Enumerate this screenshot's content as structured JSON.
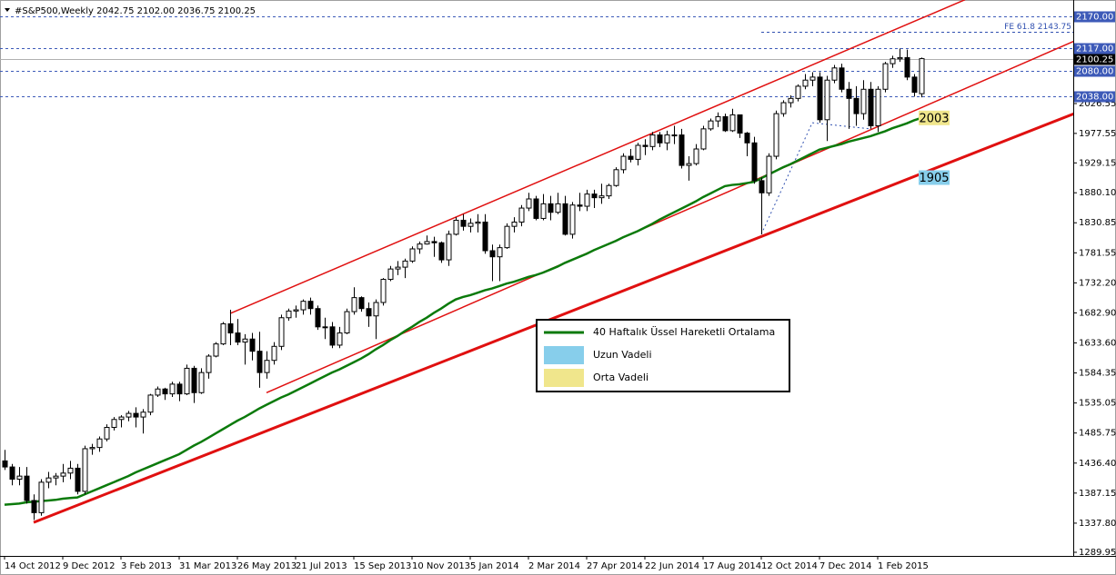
{
  "chart_data": {
    "type": "candlestick",
    "title": "#S&P500,Weekly  2042.75 2102.00 2036.75 2100.25",
    "categories": [
      "14 Oct 2012",
      null,
      null,
      null,
      null,
      null,
      null,
      null,
      "9 Dec 2012",
      null,
      null,
      null,
      null,
      null,
      null,
      null,
      "3 Feb 2013",
      null,
      null,
      null,
      null,
      null,
      null,
      null,
      "31 Mar 2013",
      null,
      null,
      null,
      null,
      null,
      null,
      null,
      "26 May 2013",
      null,
      null,
      null,
      null,
      null,
      null,
      null,
      "21 Jul 2013",
      null,
      null,
      null,
      null,
      null,
      null,
      null,
      "15 Sep 2013",
      null,
      null,
      null,
      null,
      null,
      null,
      null,
      "10 Nov 2013",
      null,
      null,
      null,
      null,
      null,
      null,
      null,
      "5 Jan 2014",
      null,
      null,
      null,
      null,
      null,
      null,
      null,
      "2 Mar 2014",
      null,
      null,
      null,
      null,
      null,
      null,
      null,
      "27 Apr 2014",
      null,
      null,
      null,
      null,
      null,
      null,
      null,
      "22 Jun 2014",
      null,
      null,
      null,
      null,
      null,
      null,
      null,
      "17 Aug 2014",
      null,
      null,
      null,
      null,
      null,
      null,
      null,
      "12 Oct 2014",
      null,
      null,
      null,
      null,
      null,
      null,
      null,
      "7 Dec 2014",
      null,
      null,
      null,
      null,
      null,
      null,
      null,
      "1 Feb 2015",
      null,
      null,
      null,
      null,
      null,
      null
    ],
    "ohlc": {
      "open": [
        1440,
        1430,
        1410,
        1415,
        1375,
        1355,
        1405,
        1412,
        1415,
        1420,
        1428,
        1390,
        1460,
        1462,
        1476,
        1495,
        1508,
        1512,
        1518,
        1512,
        1520,
        1548,
        1558,
        1550,
        1566,
        1550,
        1592,
        1552,
        1585,
        1612,
        1632,
        1665,
        1650,
        1635,
        1640,
        1620,
        1585,
        1605,
        1628,
        1675,
        1686,
        1688,
        1702,
        1690,
        1660,
        1660,
        1630,
        1650,
        1685,
        1708,
        1690,
        1678,
        1700,
        1738,
        1755,
        1758,
        1768,
        1788,
        1796,
        1800,
        1798,
        1770,
        1812,
        1835,
        1825,
        1830,
        1832,
        1785,
        1775,
        1790,
        1825,
        1832,
        1855,
        1870,
        1838,
        1862,
        1848,
        1862,
        1812,
        1860,
        1858,
        1878,
        1872,
        1875,
        1892,
        1918,
        1940,
        1935,
        1958,
        1956,
        1975,
        1962,
        1975,
        1975,
        1925,
        1928,
        1952,
        1985,
        1998,
        2005,
        1982,
        2008,
        1978,
        1962,
        1900,
        1880,
        1940,
        2010,
        2028,
        2035,
        2055,
        2065,
        2070,
        2000,
        2065,
        2085,
        2050,
        2035,
        2010,
        2050,
        1990,
        2050,
        2092,
        2100,
        2102,
        2070,
        2042.75
      ],
      "high": [
        1458,
        1435,
        1430,
        1430,
        1385,
        1410,
        1422,
        1420,
        1435,
        1440,
        1435,
        1465,
        1468,
        1480,
        1500,
        1512,
        1515,
        1522,
        1528,
        1525,
        1550,
        1562,
        1560,
        1570,
        1570,
        1598,
        1596,
        1592,
        1615,
        1635,
        1668,
        1688,
        1673,
        1648,
        1650,
        1652,
        1620,
        1635,
        1680,
        1690,
        1695,
        1705,
        1708,
        1695,
        1675,
        1668,
        1660,
        1690,
        1725,
        1710,
        1700,
        1705,
        1740,
        1760,
        1768,
        1772,
        1792,
        1800,
        1810,
        1808,
        1800,
        1818,
        1840,
        1845,
        1838,
        1845,
        1845,
        1795,
        1795,
        1830,
        1840,
        1860,
        1880,
        1875,
        1878,
        1875,
        1880,
        1875,
        1865,
        1880,
        1885,
        1885,
        1895,
        1895,
        1922,
        1945,
        1952,
        1962,
        1968,
        1980,
        1980,
        1982,
        1990,
        1985,
        1940,
        1960,
        1990,
        2002,
        2012,
        2010,
        2018,
        2008,
        1980,
        1972,
        1905,
        1945,
        2015,
        2032,
        2040,
        2058,
        2075,
        2078,
        2078,
        2072,
        2090,
        2092,
        2062,
        2055,
        2065,
        2062,
        2055,
        2095,
        2105,
        2117,
        2115,
        2075,
        2102
      ],
      "low": [
        1425,
        1400,
        1400,
        1370,
        1343,
        1350,
        1395,
        1400,
        1405,
        1410,
        1385,
        1385,
        1450,
        1455,
        1472,
        1490,
        1495,
        1505,
        1495,
        1485,
        1515,
        1545,
        1540,
        1545,
        1538,
        1548,
        1535,
        1550,
        1575,
        1610,
        1630,
        1630,
        1630,
        1598,
        1605,
        1560,
        1575,
        1598,
        1622,
        1670,
        1675,
        1680,
        1680,
        1655,
        1640,
        1625,
        1625,
        1648,
        1680,
        1685,
        1660,
        1640,
        1695,
        1735,
        1745,
        1740,
        1765,
        1780,
        1795,
        1775,
        1765,
        1760,
        1810,
        1818,
        1815,
        1815,
        1780,
        1735,
        1735,
        1788,
        1815,
        1825,
        1850,
        1835,
        1835,
        1835,
        1845,
        1810,
        1805,
        1850,
        1850,
        1855,
        1862,
        1870,
        1890,
        1912,
        1930,
        1925,
        1942,
        1950,
        1955,
        1950,
        1960,
        1920,
        1900,
        1925,
        1950,
        1982,
        1988,
        1980,
        1980,
        1970,
        1940,
        1895,
        1812,
        1875,
        1935,
        2005,
        2020,
        2030,
        2050,
        2055,
        1995,
        1965,
        2060,
        2045,
        1985,
        1990,
        2000,
        1985,
        1980,
        2045,
        2085,
        2095,
        2065,
        2038,
        2036.75
      ],
      "close": [
        1430,
        1410,
        1415,
        1375,
        1355,
        1405,
        1412,
        1415,
        1420,
        1428,
        1390,
        1460,
        1462,
        1476,
        1495,
        1508,
        1512,
        1518,
        1512,
        1520,
        1548,
        1558,
        1550,
        1566,
        1550,
        1592,
        1552,
        1585,
        1612,
        1632,
        1665,
        1650,
        1635,
        1640,
        1620,
        1585,
        1605,
        1628,
        1675,
        1686,
        1688,
        1702,
        1690,
        1660,
        1660,
        1630,
        1650,
        1685,
        1708,
        1690,
        1678,
        1700,
        1738,
        1755,
        1758,
        1768,
        1788,
        1796,
        1800,
        1798,
        1770,
        1812,
        1835,
        1825,
        1830,
        1832,
        1785,
        1775,
        1790,
        1825,
        1832,
        1855,
        1870,
        1838,
        1862,
        1848,
        1862,
        1812,
        1860,
        1858,
        1878,
        1872,
        1875,
        1892,
        1918,
        1940,
        1935,
        1958,
        1956,
        1975,
        1962,
        1975,
        1975,
        1925,
        1928,
        1952,
        1985,
        1998,
        2005,
        1982,
        2008,
        1978,
        1962,
        1900,
        1880,
        1940,
        2010,
        2028,
        2035,
        2055,
        2065,
        2070,
        2000,
        2065,
        2085,
        2050,
        2035,
        2010,
        2050,
        1990,
        2050,
        2092,
        2100,
        2102,
        2070,
        2045,
        2100.25
      ]
    },
    "series": [
      {
        "name": "40 Haftalık Üssel Hareketli Ortalama",
        "color": "#0b7a0b",
        "values": [
          1368,
          1369,
          1370,
          1372,
          1373,
          1374,
          1375,
          1376,
          1378,
          1379,
          1380,
          1385,
          1390,
          1395,
          1400,
          1405,
          1410,
          1415,
          1421,
          1426,
          1431,
          1436,
          1441,
          1446,
          1451,
          1458,
          1465,
          1471,
          1478,
          1485,
          1492,
          1499,
          1506,
          1512,
          1519,
          1526,
          1532,
          1538,
          1544,
          1549,
          1555,
          1561,
          1567,
          1573,
          1579,
          1585,
          1590,
          1596,
          1602,
          1608,
          1615,
          1623,
          1630,
          1638,
          1645,
          1653,
          1660,
          1668,
          1675,
          1683,
          1690,
          1698,
          1705,
          1709,
          1712,
          1716,
          1720,
          1723,
          1727,
          1731,
          1734,
          1738,
          1742,
          1745,
          1749,
          1754,
          1759,
          1765,
          1770,
          1775,
          1780,
          1786,
          1791,
          1796,
          1801,
          1807,
          1812,
          1817,
          1823,
          1829,
          1836,
          1842,
          1848,
          1854,
          1860,
          1866,
          1873,
          1879,
          1885,
          1891,
          1893,
          1894,
          1896,
          1898,
          1904,
          1910,
          1916,
          1922,
          1927,
          1933,
          1939,
          1945,
          1951,
          1954,
          1957,
          1960,
          1964,
          1967,
          1970,
          1973,
          1977,
          1981,
          1986,
          1990,
          1994,
          1999,
          2003
        ]
      }
    ],
    "trendlines": [
      {
        "color": "#e01010",
        "width": 3,
        "points": [
          [
            4,
            1339
          ],
          [
            147,
            2010
          ]
        ]
      },
      {
        "color": "#e01010",
        "width": 1.5,
        "points": [
          [
            31,
            1682
          ],
          [
            132,
            2197
          ]
        ]
      },
      {
        "color": "#e01010",
        "width": 1.5,
        "points": [
          [
            36,
            1552
          ],
          [
            147,
            2129
          ]
        ]
      }
    ],
    "fib_line": {
      "color": "#3050b0",
      "points": [
        [
          104,
          1812
        ],
        [
          111,
          1995
        ],
        [
          119,
          1985
        ]
      ]
    },
    "fe_level": {
      "value": 2143.75,
      "label": "FE 61.8 2143.75",
      "color": "#3050b0"
    },
    "levels": [
      {
        "value": 2170,
        "label": "2170.00",
        "color": "#3d5ab8",
        "style": "dashed"
      },
      {
        "value": 2117,
        "label": "2117.00",
        "color": "#3d5ab8",
        "style": "dashed"
      },
      {
        "value": 2100.25,
        "label": "2100.25",
        "color": "#000000",
        "style": "solid"
      },
      {
        "value": 2080,
        "label": "2080.00",
        "color": "#3d5ab8",
        "style": "dashed"
      },
      {
        "value": 2038,
        "label": "2038.00",
        "color": "#3d5ab8",
        "style": "dashed"
      }
    ],
    "annotations": [
      {
        "name": "Uzun Vadeli",
        "value": 1905,
        "color": "#87ceeb"
      },
      {
        "name": "Orta Vadeli",
        "value": 2003,
        "color": "#f0e68c"
      }
    ],
    "ylim": [
      1284,
      2184.6
    ],
    "yticks": [
      2026.55,
      1977.55,
      1929.15,
      {
        "value": 1880.1,
        "label": "1880.10"
      },
      1830.85,
      1781.55,
      {
        "value": 1732.2,
        "label": "1732.20"
      },
      {
        "value": 1682.9,
        "label": "1682.90"
      },
      {
        "value": 1633.6,
        "label": "1633.60"
      },
      1584.35,
      1535.05,
      1485.75,
      {
        "value": 1436.4,
        "label": "1436.40"
      },
      1387.15,
      {
        "value": 1337.8,
        "label": "1337.80"
      },
      1289.95
    ]
  }
}
